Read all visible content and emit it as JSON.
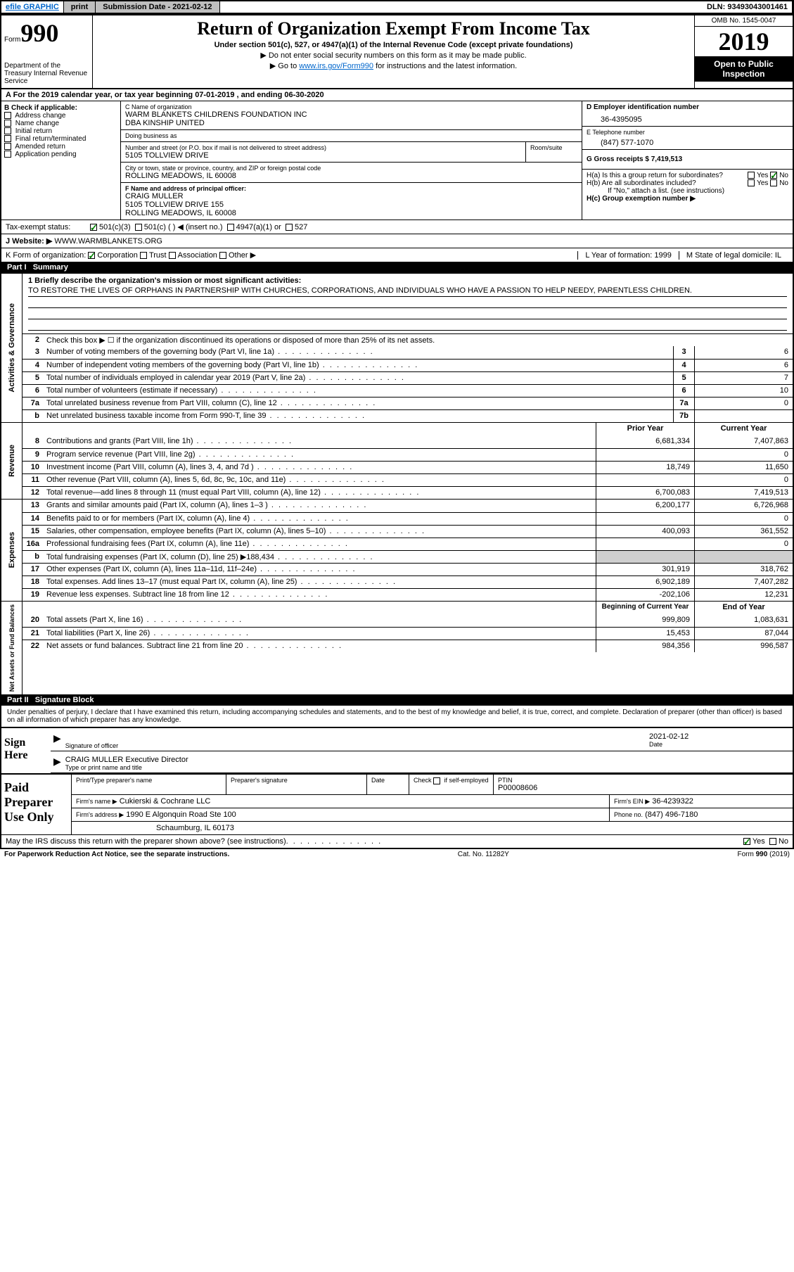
{
  "topbar": {
    "efile": "efile GRAPHIC",
    "print": "print",
    "submission_label": "Submission Date - 2021-02-12",
    "dln": "DLN: 93493043001461"
  },
  "header": {
    "form_word": "Form",
    "form_num": "990",
    "title": "Return of Organization Exempt From Income Tax",
    "subtitle": "Under section 501(c), 527, or 4947(a)(1) of the Internal Revenue Code (except private foundations)",
    "line1": "▶ Do not enter social security numbers on this form as it may be made public.",
    "line2_a": "▶ Go to ",
    "line2_link": "www.irs.gov/Form990",
    "line2_b": " for instructions and the latest information.",
    "omb": "OMB No. 1545-0047",
    "year": "2019",
    "inspect1": "Open to Public",
    "inspect2": "Inspection",
    "dept": "Department of the Treasury\nInternal Revenue Service"
  },
  "period": "A For the 2019 calendar year, or tax year beginning 07-01-2019   , and ending 06-30-2020",
  "colB": {
    "label": "B Check if applicable:",
    "items": [
      "Address change",
      "Name change",
      "Initial return",
      "Final return/terminated",
      "Amended return",
      "Application pending"
    ]
  },
  "org": {
    "c_label": "C Name of organization",
    "name": "WARM BLANKETS CHILDRENS FOUNDATION INC",
    "dba": "DBA KINSHIP UNITED",
    "dba_label": "Doing business as",
    "addr_label": "Number and street (or P.O. box if mail is not delivered to street address)",
    "room_label": "Room/suite",
    "addr": "5105 TOLLVIEW DRIVE",
    "city_label": "City or town, state or province, country, and ZIP or foreign postal code",
    "city": "ROLLING MEADOWS, IL  60008",
    "f_label": "F Name and address of principal officer:",
    "f_name": "CRAIG MULLER",
    "f_addr1": "5105 TOLLVIEW DRIVE 155",
    "f_addr2": "ROLLING MEADOWS, IL  60008"
  },
  "right": {
    "d_label": "D Employer identification number",
    "ein": "36-4395095",
    "e_label": "E Telephone number",
    "phone": "(847) 577-1070",
    "g_label": "G Gross receipts $ 7,419,513",
    "ha_label": "H(a)  Is this a group return for subordinates?",
    "hb_label": "H(b)  Are all subordinates included?",
    "hb_note": "If \"No,\" attach a list. (see instructions)",
    "hc_label": "H(c)  Group exemption number ▶",
    "yes": "Yes",
    "no": "No"
  },
  "tax": {
    "label": "Tax-exempt status:",
    "opts": [
      "501(c)(3)",
      "501(c) (   ) ◀ (insert no.)",
      "4947(a)(1) or",
      "527"
    ]
  },
  "website": {
    "label": "J   Website: ▶",
    "val": "WWW.WARMBLANKETS.ORG"
  },
  "korg": {
    "label": "K Form of organization:",
    "opts": [
      "Corporation",
      "Trust",
      "Association",
      "Other ▶"
    ],
    "l_label": "L Year of formation: 1999",
    "m_label": "M State of legal domicile: IL"
  },
  "part1": {
    "num": "Part I",
    "title": "Summary"
  },
  "mission": {
    "label": "1  Briefly describe the organization's mission or most significant activities:",
    "text": "TO RESTORE THE LIVES OF ORPHANS IN PARTNERSHIP WITH CHURCHES, CORPORATIONS, AND INDIVIDUALS WHO HAVE A PASSION TO HELP NEEDY, PARENTLESS CHILDREN."
  },
  "activities": {
    "label": "Activities & Governance",
    "line2": "Check this box ▶ ☐  if the organization discontinued its operations or disposed of more than 25% of its net assets.",
    "rows": [
      {
        "n": "3",
        "t": "Number of voting members of the governing body (Part VI, line 1a)",
        "b": "3",
        "v": "6"
      },
      {
        "n": "4",
        "t": "Number of independent voting members of the governing body (Part VI, line 1b)",
        "b": "4",
        "v": "6"
      },
      {
        "n": "5",
        "t": "Total number of individuals employed in calendar year 2019 (Part V, line 2a)",
        "b": "5",
        "v": "7"
      },
      {
        "n": "6",
        "t": "Total number of volunteers (estimate if necessary)",
        "b": "6",
        "v": "10"
      },
      {
        "n": "7a",
        "t": "Total unrelated business revenue from Part VIII, column (C), line 12",
        "b": "7a",
        "v": "0"
      },
      {
        "n": "b",
        "t": "Net unrelated business taxable income from Form 990-T, line 39",
        "b": "7b",
        "v": ""
      }
    ]
  },
  "revenue": {
    "label": "Revenue",
    "hdr_prior": "Prior Year",
    "hdr_curr": "Current Year",
    "rows": [
      {
        "n": "8",
        "t": "Contributions and grants (Part VIII, line 1h)",
        "p": "6,681,334",
        "c": "7,407,863"
      },
      {
        "n": "9",
        "t": "Program service revenue (Part VIII, line 2g)",
        "p": "",
        "c": "0"
      },
      {
        "n": "10",
        "t": "Investment income (Part VIII, column (A), lines 3, 4, and 7d )",
        "p": "18,749",
        "c": "11,650"
      },
      {
        "n": "11",
        "t": "Other revenue (Part VIII, column (A), lines 5, 6d, 8c, 9c, 10c, and 11e)",
        "p": "",
        "c": "0"
      },
      {
        "n": "12",
        "t": "Total revenue—add lines 8 through 11 (must equal Part VIII, column (A), line 12)",
        "p": "6,700,083",
        "c": "7,419,513"
      }
    ]
  },
  "expenses": {
    "label": "Expenses",
    "rows": [
      {
        "n": "13",
        "t": "Grants and similar amounts paid (Part IX, column (A), lines 1–3 )",
        "p": "6,200,177",
        "c": "6,726,968"
      },
      {
        "n": "14",
        "t": "Benefits paid to or for members (Part IX, column (A), line 4)",
        "p": "",
        "c": "0"
      },
      {
        "n": "15",
        "t": "Salaries, other compensation, employee benefits (Part IX, column (A), lines 5–10)",
        "p": "400,093",
        "c": "361,552"
      },
      {
        "n": "16a",
        "t": "Professional fundraising fees (Part IX, column (A), line 11e)",
        "p": "",
        "c": "0"
      },
      {
        "n": "b",
        "t": "Total fundraising expenses (Part IX, column (D), line 25) ▶188,434",
        "p": "SHADE",
        "c": "SHADE"
      },
      {
        "n": "17",
        "t": "Other expenses (Part IX, column (A), lines 11a–11d, 11f–24e)",
        "p": "301,919",
        "c": "318,762"
      },
      {
        "n": "18",
        "t": "Total expenses. Add lines 13–17 (must equal Part IX, column (A), line 25)",
        "p": "6,902,189",
        "c": "7,407,282"
      },
      {
        "n": "19",
        "t": "Revenue less expenses. Subtract line 18 from line 12",
        "p": "-202,106",
        "c": "12,231"
      }
    ]
  },
  "netassets": {
    "label": "Net Assets or Fund Balances",
    "hdr_beg": "Beginning of Current Year",
    "hdr_end": "End of Year",
    "rows": [
      {
        "n": "20",
        "t": "Total assets (Part X, line 16)",
        "p": "999,809",
        "c": "1,083,631"
      },
      {
        "n": "21",
        "t": "Total liabilities (Part X, line 26)",
        "p": "15,453",
        "c": "87,044"
      },
      {
        "n": "22",
        "t": "Net assets or fund balances. Subtract line 21 from line 20",
        "p": "984,356",
        "c": "996,587"
      }
    ]
  },
  "part2": {
    "num": "Part II",
    "title": "Signature Block"
  },
  "sig": {
    "penalty": "Under penalties of perjury, I declare that I have examined this return, including accompanying schedules and statements, and to the best of my knowledge and belief, it is true, correct, and complete. Declaration of preparer (other than officer) is based on all information of which preparer has any knowledge.",
    "sign_here": "Sign Here",
    "officer_sig": "Signature of officer",
    "date": "2021-02-12",
    "date_label": "Date",
    "officer_name": "CRAIG MULLER  Executive Director",
    "officer_type": "Type or print name and title"
  },
  "paid": {
    "label": "Paid Preparer Use Only",
    "h1": "Print/Type preparer's name",
    "h2": "Preparer's signature",
    "h3": "Date",
    "h4_a": "Check",
    "h4_b": "if self-employed",
    "h5": "PTIN",
    "ptin": "P00008606",
    "firm_label": "Firm's name   ▶",
    "firm": "Cukierski & Cochrane LLC",
    "ein_label": "Firm's EIN ▶",
    "ein": "36-4239322",
    "addr_label": "Firm's address ▶",
    "addr1": "1990 E Algonquin Road Ste 100",
    "addr2": "Schaumburg, IL  60173",
    "phone_label": "Phone no.",
    "phone": "(847) 496-7180",
    "discuss": "May the IRS discuss this return with the preparer shown above? (see instructions)"
  },
  "footer": {
    "pra": "For Paperwork Reduction Act Notice, see the separate instructions.",
    "cat": "Cat. No. 11282Y",
    "form": "Form 990 (2019)"
  }
}
